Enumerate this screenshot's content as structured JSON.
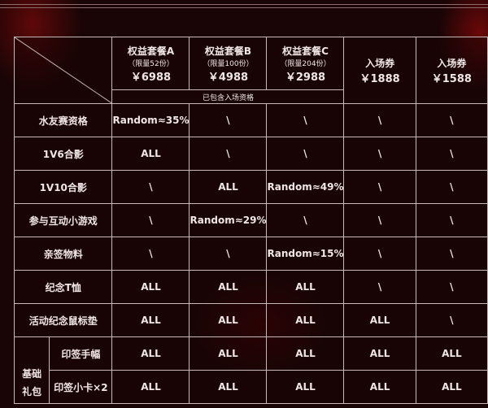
{
  "header": {
    "packages": [
      {
        "name": "权益套餐A",
        "limit": "（限量52份）",
        "price": "￥6988"
      },
      {
        "name": "权益套餐B",
        "limit": "（限量100份）",
        "price": "￥4988"
      },
      {
        "name": "权益套餐C",
        "limit": "（限量204份）",
        "price": "￥2988"
      }
    ],
    "tickets": [
      {
        "name": "入场券",
        "price": "￥1888"
      },
      {
        "name": "入场券",
        "price": "￥1588"
      }
    ],
    "included_note": "已包含入场资格"
  },
  "rows": [
    {
      "label": "水友赛资格",
      "cells": [
        "Random≈35%",
        "\\",
        "\\",
        "\\",
        "\\"
      ]
    },
    {
      "label": "1V6合影",
      "cells": [
        "ALL",
        "\\",
        "\\",
        "\\",
        "\\"
      ]
    },
    {
      "label": "1V10合影",
      "cells": [
        "\\",
        "ALL",
        "Random≈49%",
        "\\",
        "\\"
      ]
    },
    {
      "label": "参与互动小游戏",
      "cells": [
        "\\",
        "Random≈29%",
        "\\",
        "\\",
        "\\"
      ]
    },
    {
      "label": "亲签物料",
      "cells": [
        "\\",
        "\\",
        "Random≈15%",
        "\\",
        "\\"
      ]
    },
    {
      "label": "纪念T恤",
      "cells": [
        "ALL",
        "ALL",
        "ALL",
        "\\",
        "\\"
      ]
    },
    {
      "label": "活动纪念鼠标垫",
      "cells": [
        "ALL",
        "ALL",
        "ALL",
        "ALL",
        "\\"
      ]
    }
  ],
  "basic_pack": {
    "label": "基础礼包",
    "rows": [
      {
        "label": "印签手幅",
        "cells": [
          "ALL",
          "ALL",
          "ALL",
          "ALL",
          "ALL"
        ]
      },
      {
        "label": "印签小卡×2",
        "cells": [
          "ALL",
          "ALL",
          "ALL",
          "ALL",
          "ALL"
        ]
      }
    ]
  }
}
